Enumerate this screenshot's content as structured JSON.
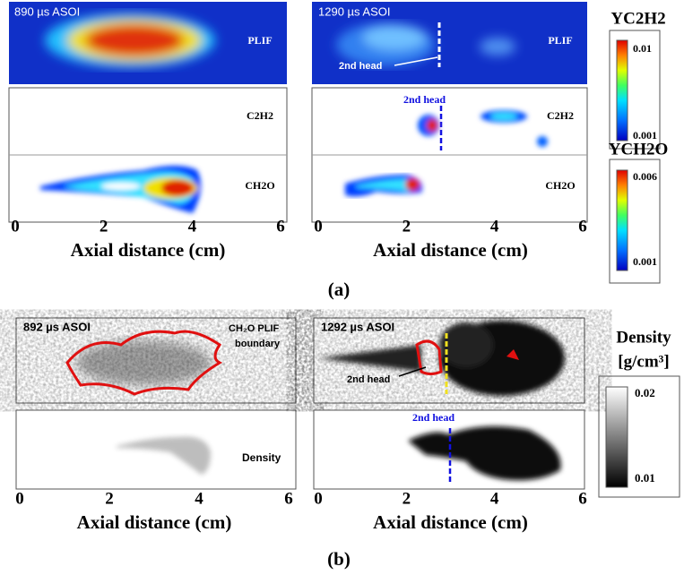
{
  "panel_a": {
    "label": "(a)",
    "xlabel": "Axial distance (cm)",
    "xticks": [
      "0",
      "2",
      "4",
      "6"
    ],
    "left": {
      "time": "890 µs ASOI",
      "plif": "PLIF",
      "c2h2": "C2H2",
      "ch2o": "CH2O"
    },
    "right": {
      "time": "1290 µs ASOI",
      "plif": "PLIF",
      "head_exp": "2nd head",
      "head_sim": "2nd head",
      "c2h2": "C2H2",
      "ch2o": "CH2O"
    },
    "colorbars": [
      {
        "title": "YC2H2",
        "max": "0.01",
        "min": "0.001"
      },
      {
        "title": "YCH2O",
        "max": "0.006",
        "min": "0.001"
      }
    ]
  },
  "panel_b": {
    "label": "(b)",
    "xlabel": "Axial distance (cm)",
    "xticks": [
      "0",
      "2",
      "4",
      "6"
    ],
    "left": {
      "time": "892 µs ASOI",
      "boundary_1": "CH₂O PLIF",
      "boundary_2": "boundary",
      "density": "Density"
    },
    "right": {
      "time": "1292 µs ASOI",
      "head_exp": "2nd head",
      "head_sim": "2nd head"
    },
    "colorbar": {
      "title": "Density",
      "unit": "[g/cm³]",
      "max": "0.02",
      "min": "0.01"
    }
  }
}
